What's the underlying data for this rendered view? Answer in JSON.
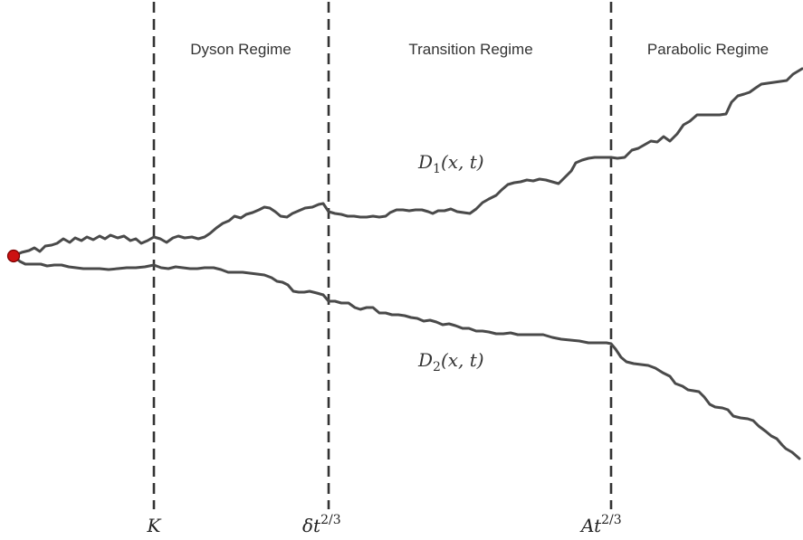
{
  "regimes": {
    "dyson": "Dyson Regime",
    "transition": "Transition Regime",
    "parabolic": "Parabolic Regime"
  },
  "curves": {
    "d1": {
      "name": "D",
      "sub": "1",
      "args": "(x, t)"
    },
    "d2": {
      "name": "D",
      "sub": "2",
      "args": "(x, t)"
    }
  },
  "axis_marks": {
    "k": {
      "base": "K",
      "sup": ""
    },
    "delta": {
      "base": "δt",
      "sup": "2/3"
    },
    "a": {
      "base": "At",
      "sup": "2/3"
    }
  },
  "colors": {
    "curve": "#4a4a4a",
    "divider": "#333333",
    "start_point": "#cc1111"
  }
}
